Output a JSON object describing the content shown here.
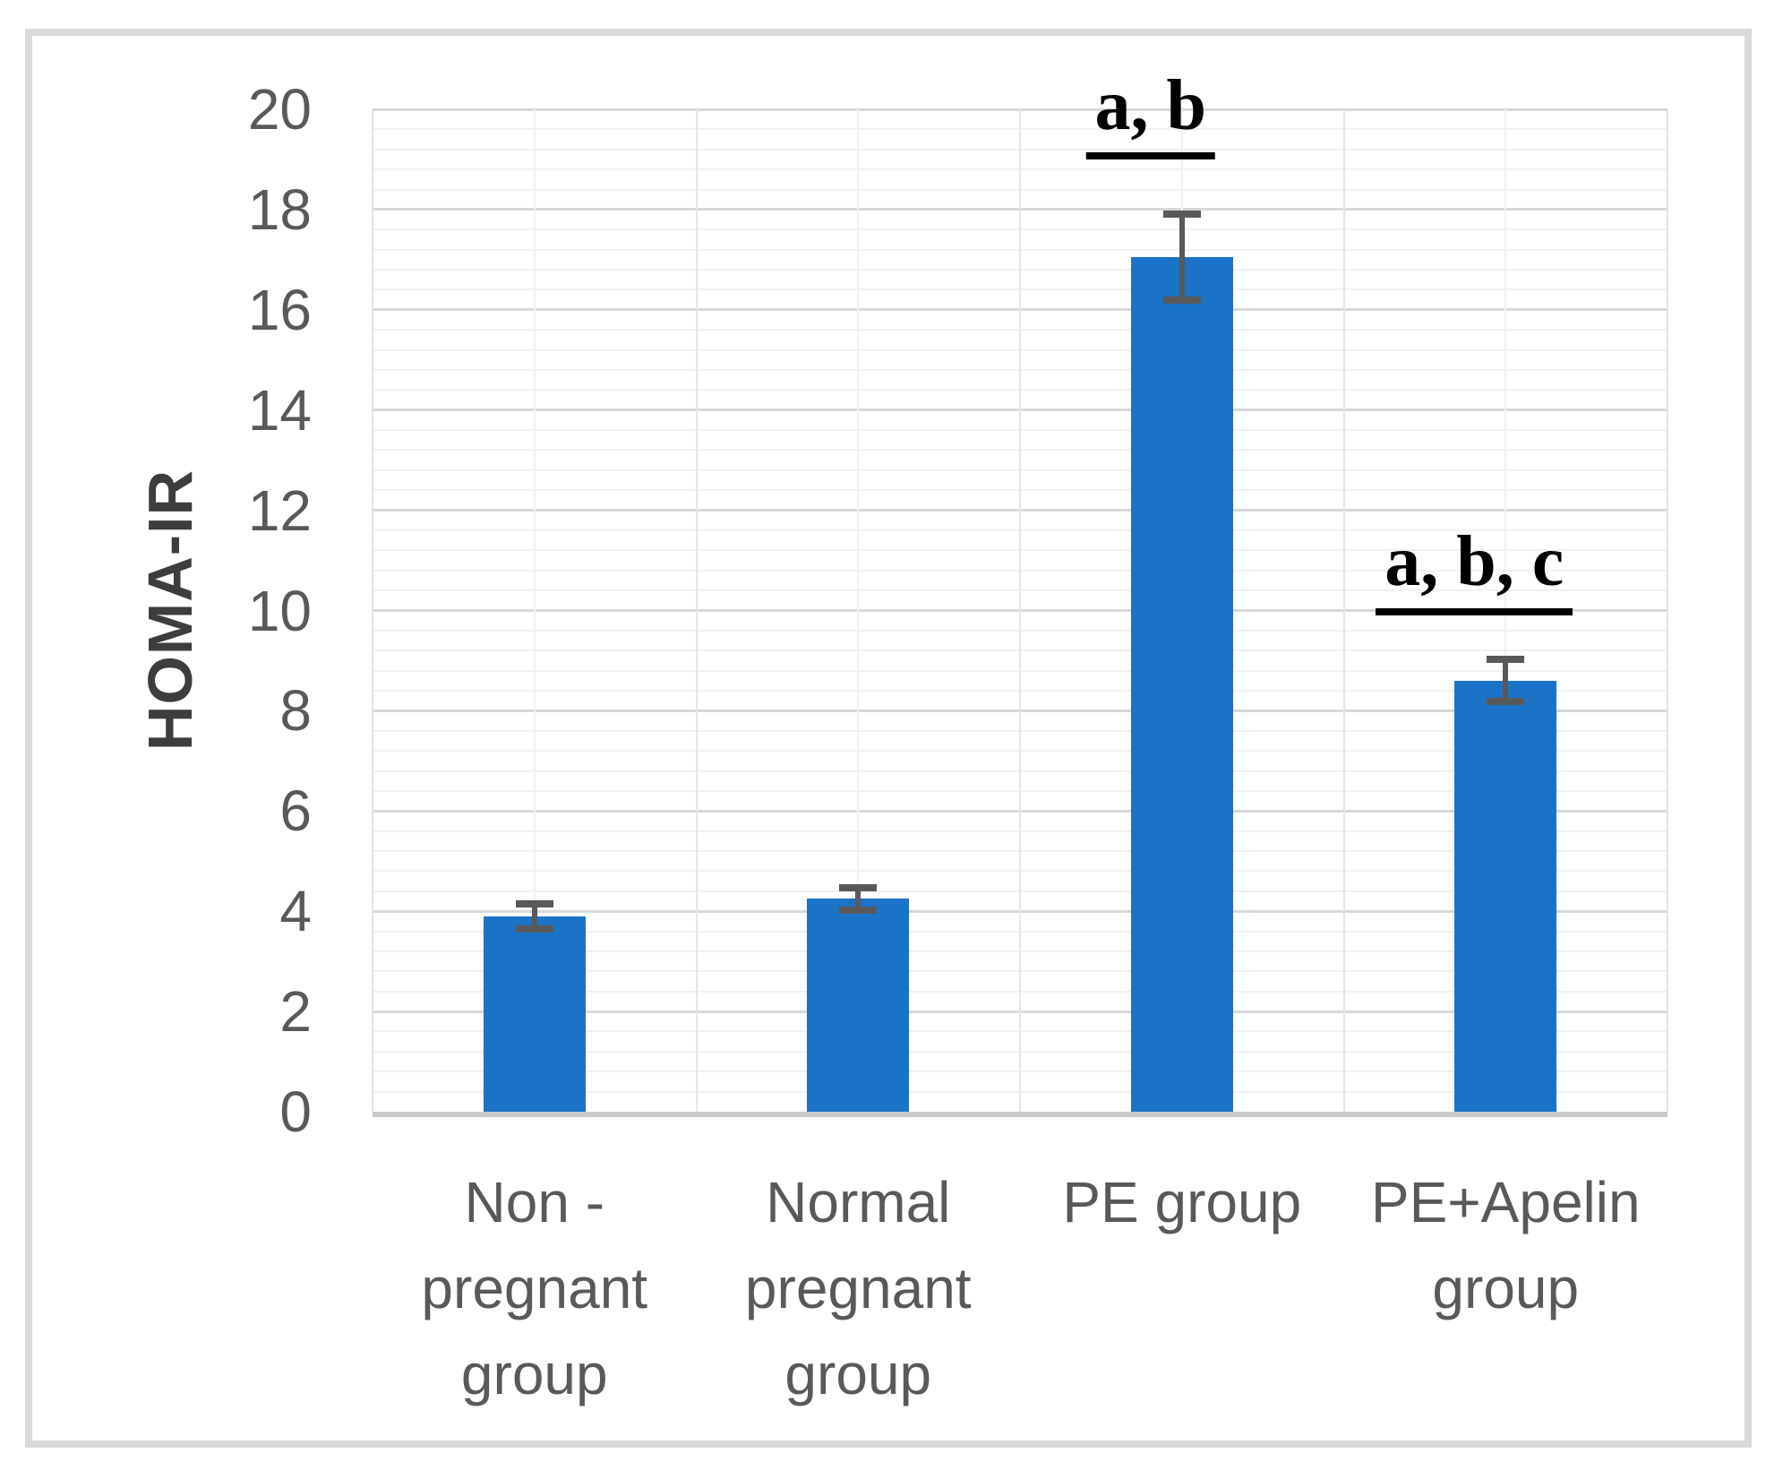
{
  "figure": {
    "background": "#ffffff",
    "frame_color": "#dadada"
  },
  "chart_data": {
    "type": "bar",
    "title": "",
    "xlabel": "",
    "ylabel": "HOMA-IR",
    "categories": [
      "Non -\npregnant\ngroup",
      "Normal\npregnant\ngroup",
      "PE group",
      "PE+Apelin\ngroup"
    ],
    "values": [
      3.9,
      4.25,
      17.05,
      8.6
    ],
    "errors": [
      0.25,
      0.22,
      0.85,
      0.42
    ],
    "ylim": [
      0,
      20
    ],
    "y_major_unit": 2,
    "y_minor_unit": 0.4,
    "yticks": [
      "0",
      "2",
      "4",
      "6",
      "8",
      "10",
      "12",
      "14",
      "16",
      "18",
      "20"
    ],
    "grid": "horizontal major+minor, vertical category lines",
    "legend": "none",
    "annotations": [
      {
        "text": "a, b",
        "bar_index": 2,
        "underline_y": 19.0
      },
      {
        "text": "a, b, c",
        "bar_index": 3,
        "underline_y": 9.9
      }
    ],
    "colors": {
      "bar": "#1b73c8",
      "error_bar": "#595959",
      "grid_major": "#d8d8d8",
      "grid_minor": "#f1f1f1",
      "grid_vertical_major": "#e5e5e5",
      "grid_vertical_minor": "#f2f2f2",
      "axis_line": "#c9c9c9",
      "tick_text": "#595959",
      "axis_title_text": "#3d3d3d",
      "annotation_text": "#000000"
    }
  }
}
